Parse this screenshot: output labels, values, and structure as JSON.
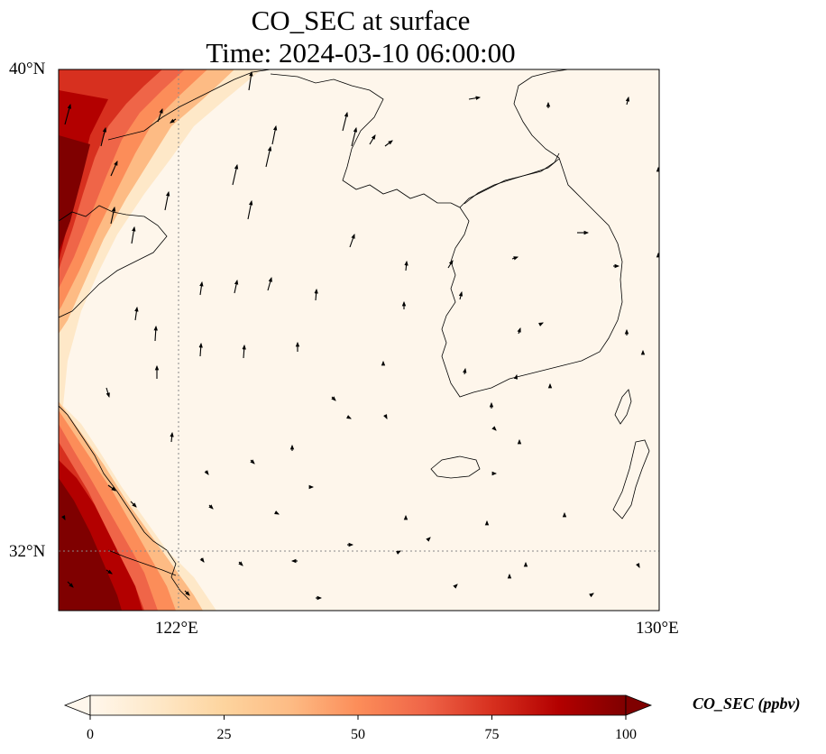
{
  "title": {
    "line1": "CO_SEC at surface",
    "line2": "Time: 2024-03-10 06:00:00"
  },
  "axes": {
    "lat_labels": [
      "40°N",
      "32°N"
    ],
    "lon_labels": [
      "122°E",
      "130°E"
    ],
    "lat_range": [
      31,
      40
    ],
    "lon_range": [
      120,
      130
    ]
  },
  "colorbar": {
    "label": "CO_SEC (ppbv)",
    "ticks": [
      "0",
      "25",
      "50",
      "75",
      "100"
    ],
    "range": [
      0,
      100
    ],
    "extend": "both",
    "colormap": "OrRd",
    "colors": [
      "#fff7ec",
      "#fee8c8",
      "#fdd49e",
      "#fdbb84",
      "#fc8d59",
      "#ef6548",
      "#d7301f",
      "#b30000",
      "#7f0000"
    ]
  },
  "map": {
    "land_color": "#fef6eb",
    "gridline_color": "#888888",
    "features": [
      "coastline",
      "wind-vectors",
      "gridlines"
    ]
  }
}
